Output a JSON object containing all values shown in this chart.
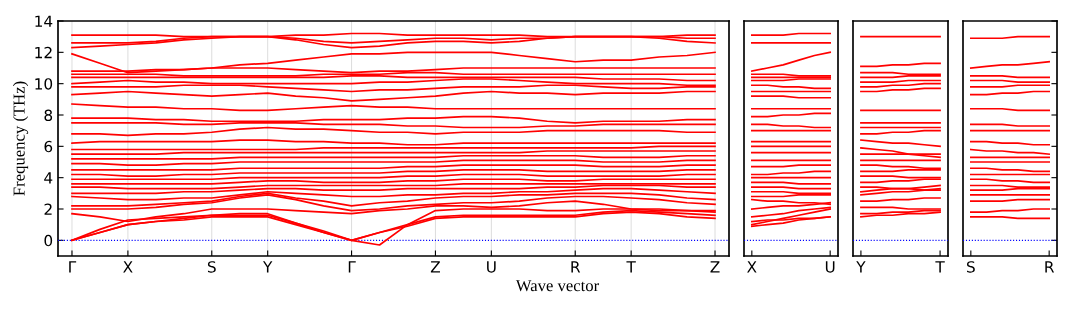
{
  "chart_data": [
    {
      "type": "line",
      "ylabel": "Frequency (THz)",
      "xlabel": "Wave vector",
      "grid": "x",
      "marker": "none",
      "line_style": "solid",
      "categories": [
        "Γ",
        null,
        "X",
        null,
        null,
        "S",
        null,
        "Y",
        null,
        null,
        "Γ",
        null,
        null,
        "Z",
        null,
        "U",
        null,
        null,
        "R",
        null,
        "T",
        null,
        null,
        "Z"
      ],
      "ylim": [
        -1,
        14
      ],
      "yticks": [
        0,
        2,
        4,
        6,
        8,
        10,
        12,
        14
      ],
      "ref_lines": [
        {
          "axis": "y",
          "value": 0,
          "color": "#0000ff",
          "line_style": "dotted"
        }
      ],
      "series": [
        {
          "color": "#ff0000",
          "values": [
            0,
            0.5,
            1.0,
            1.2,
            1.3,
            1.5,
            1.5,
            1.5,
            1.0,
            0.5,
            0,
            0.5,
            0.9,
            1.4,
            1.5,
            1.5,
            1.5,
            1.5,
            1.5,
            1.7,
            1.8,
            1.7,
            1.5,
            1.4
          ]
        },
        {
          "color": "#ff0000",
          "values": [
            0,
            0.5,
            1.0,
            1.2,
            1.4,
            1.6,
            1.6,
            1.6,
            1.1,
            0.5,
            0,
            0.5,
            1.0,
            1.5,
            1.6,
            1.6,
            1.6,
            1.6,
            1.6,
            1.8,
            1.9,
            1.8,
            1.7,
            1.6
          ]
        },
        {
          "color": "#ff0000",
          "values": [
            0,
            0.7,
            1.3,
            1.4,
            1.5,
            1.6,
            1.7,
            1.7,
            1.1,
            0.6,
            0,
            -0.3,
            1.0,
            1.9,
            2.0,
            2.0,
            2.0,
            1.9,
            1.9,
            2.0,
            2.0,
            2.0,
            1.9,
            1.9
          ]
        },
        {
          "color": "#ff0000",
          "values": [
            1.7,
            1.5,
            1.2,
            1.5,
            1.7,
            2.0,
            2.0,
            2.0,
            1.9,
            1.8,
            1.7,
            1.9,
            2.0,
            2.2,
            2.2,
            2.1,
            2.2,
            2.4,
            2.5,
            2.3,
            2.0,
            1.9,
            1.9,
            1.8
          ]
        },
        {
          "color": "#ff0000",
          "values": [
            2.0,
            2.0,
            2.0,
            2.1,
            2.3,
            2.4,
            2.7,
            2.9,
            2.6,
            2.2,
            1.9,
            2.0,
            2.2,
            2.3,
            2.4,
            2.4,
            2.5,
            2.7,
            2.8,
            2.8,
            2.7,
            2.6,
            2.4,
            2.3
          ]
        },
        {
          "color": "#ff0000",
          "values": [
            2.2,
            2.2,
            2.2,
            2.3,
            2.4,
            2.5,
            2.8,
            3.0,
            2.7,
            2.5,
            2.2,
            2.4,
            2.5,
            2.7,
            2.8,
            2.8,
            2.9,
            2.9,
            3.0,
            3.0,
            3.0,
            2.9,
            2.7,
            2.6
          ]
        },
        {
          "color": "#ff0000",
          "values": [
            2.8,
            2.7,
            2.6,
            2.6,
            2.7,
            2.7,
            2.9,
            3.1,
            3.0,
            2.9,
            2.8,
            2.8,
            2.9,
            2.9,
            3.0,
            3.0,
            3.1,
            3.1,
            3.2,
            3.3,
            3.3,
            3.2,
            3.1,
            3.0
          ]
        },
        {
          "color": "#ff0000",
          "values": [
            3.0,
            3.0,
            3.0,
            3.0,
            3.1,
            3.1,
            3.2,
            3.3,
            3.3,
            3.2,
            3.2,
            3.2,
            3.3,
            3.3,
            3.3,
            3.3,
            3.3,
            3.4,
            3.4,
            3.5,
            3.5,
            3.5,
            3.4,
            3.4
          ]
        },
        {
          "color": "#ff0000",
          "values": [
            3.4,
            3.4,
            3.3,
            3.3,
            3.3,
            3.3,
            3.4,
            3.5,
            3.5,
            3.5,
            3.5,
            3.5,
            3.5,
            3.5,
            3.6,
            3.6,
            3.6,
            3.6,
            3.6,
            3.6,
            3.6,
            3.6,
            3.6,
            3.6
          ]
        },
        {
          "color": "#ff0000",
          "values": [
            3.6,
            3.6,
            3.6,
            3.6,
            3.6,
            3.6,
            3.7,
            3.8,
            3.8,
            3.7,
            3.7,
            3.7,
            3.8,
            3.8,
            3.9,
            3.9,
            3.9,
            3.8,
            3.8,
            3.9,
            3.9,
            3.9,
            3.9,
            3.9
          ]
        },
        {
          "color": "#ff0000",
          "values": [
            3.9,
            3.9,
            3.9,
            3.9,
            3.9,
            3.9,
            4.0,
            4.0,
            4.0,
            4.0,
            4.0,
            4.0,
            4.1,
            4.1,
            4.2,
            4.2,
            4.2,
            4.1,
            4.1,
            4.1,
            4.1,
            4.1,
            4.2,
            4.2
          ]
        },
        {
          "color": "#ff0000",
          "values": [
            4.2,
            4.2,
            4.1,
            4.1,
            4.2,
            4.2,
            4.3,
            4.3,
            4.3,
            4.3,
            4.3,
            4.3,
            4.4,
            4.4,
            4.5,
            4.5,
            4.5,
            4.4,
            4.4,
            4.4,
            4.4,
            4.4,
            4.5,
            4.5
          ]
        },
        {
          "color": "#ff0000",
          "values": [
            4.5,
            4.5,
            4.5,
            4.5,
            4.5,
            4.5,
            4.6,
            4.6,
            4.6,
            4.6,
            4.6,
            4.6,
            4.7,
            4.7,
            4.8,
            4.8,
            4.8,
            4.8,
            4.8,
            4.7,
            4.7,
            4.7,
            4.8,
            4.8
          ]
        },
        {
          "color": "#ff0000",
          "values": [
            4.9,
            4.9,
            4.8,
            4.8,
            4.9,
            4.9,
            5.0,
            5.0,
            5.0,
            5.0,
            5.0,
            5.0,
            5.0,
            5.0,
            5.1,
            5.1,
            5.1,
            5.1,
            5.1,
            5.0,
            5.0,
            5.0,
            5.1,
            5.1
          ]
        },
        {
          "color": "#ff0000",
          "values": [
            5.2,
            5.2,
            5.2,
            5.2,
            5.2,
            5.2,
            5.3,
            5.3,
            5.3,
            5.3,
            5.3,
            5.3,
            5.3,
            5.3,
            5.4,
            5.4,
            5.4,
            5.4,
            5.4,
            5.3,
            5.3,
            5.3,
            5.4,
            5.4
          ]
        },
        {
          "color": "#ff0000",
          "values": [
            5.5,
            5.5,
            5.5,
            5.5,
            5.6,
            5.6,
            5.6,
            5.6,
            5.6,
            5.6,
            5.6,
            5.6,
            5.6,
            5.6,
            5.6,
            5.6,
            5.6,
            5.7,
            5.7,
            5.7,
            5.7,
            5.7,
            5.7,
            5.7
          ]
        },
        {
          "color": "#ff0000",
          "values": [
            5.8,
            5.8,
            5.8,
            5.8,
            5.8,
            5.8,
            5.8,
            5.8,
            5.8,
            5.9,
            5.9,
            5.9,
            5.9,
            5.9,
            5.9,
            5.9,
            5.9,
            5.9,
            5.9,
            5.9,
            5.9,
            6.0,
            6.0,
            6.0
          ]
        },
        {
          "color": "#ff0000",
          "values": [
            6.2,
            6.3,
            6.3,
            6.3,
            6.3,
            6.3,
            6.4,
            6.4,
            6.3,
            6.3,
            6.2,
            6.2,
            6.1,
            6.1,
            6.2,
            6.2,
            6.2,
            6.2,
            6.2,
            6.2,
            6.2,
            6.2,
            6.2,
            6.2
          ]
        },
        {
          "color": "#ff0000",
          "values": [
            6.8,
            6.8,
            6.7,
            6.8,
            6.8,
            6.9,
            7.1,
            7.2,
            7.1,
            7.1,
            7.0,
            6.9,
            6.9,
            6.8,
            6.9,
            6.9,
            6.9,
            7.0,
            7.0,
            7.0,
            7.0,
            7.0,
            6.9,
            6.9
          ]
        },
        {
          "color": "#ff0000",
          "values": [
            7.5,
            7.5,
            7.5,
            7.5,
            7.4,
            7.4,
            7.5,
            7.5,
            7.5,
            7.4,
            7.4,
            7.4,
            7.3,
            7.3,
            7.2,
            7.2,
            7.2,
            7.3,
            7.3,
            7.4,
            7.4,
            7.4,
            7.4,
            7.4
          ]
        },
        {
          "color": "#ff0000",
          "values": [
            7.8,
            7.8,
            7.8,
            7.7,
            7.7,
            7.6,
            7.6,
            7.6,
            7.6,
            7.7,
            7.7,
            7.7,
            7.8,
            7.8,
            7.9,
            7.9,
            7.8,
            7.6,
            7.5,
            7.6,
            7.6,
            7.6,
            7.7,
            7.7
          ]
        },
        {
          "color": "#ff0000",
          "values": [
            8.7,
            8.6,
            8.5,
            8.5,
            8.4,
            8.4,
            8.3,
            8.3,
            8.4,
            8.5,
            8.6,
            8.5,
            8.5,
            8.4,
            8.4,
            8.4,
            8.4,
            8.4,
            8.4,
            8.4,
            8.4,
            8.4,
            8.4,
            8.4
          ]
        },
        {
          "color": "#ff0000",
          "values": [
            9.3,
            9.4,
            9.5,
            9.4,
            9.3,
            9.2,
            9.3,
            9.4,
            9.2,
            9.1,
            8.9,
            9.0,
            9.1,
            9.2,
            9.4,
            9.5,
            9.4,
            9.4,
            9.3,
            9.4,
            9.4,
            9.4,
            9.5,
            9.5
          ]
        },
        {
          "color": "#ff0000",
          "values": [
            9.8,
            9.8,
            9.8,
            9.8,
            9.9,
            9.9,
            9.9,
            9.8,
            9.7,
            9.6,
            9.5,
            9.6,
            9.6,
            9.7,
            9.8,
            9.8,
            9.8,
            9.9,
            9.9,
            9.8,
            9.7,
            9.7,
            9.8,
            9.8
          ]
        },
        {
          "color": "#ff0000",
          "values": [
            10.0,
            10.1,
            10.2,
            10.1,
            10.1,
            10.0,
            10.0,
            10.0,
            10.0,
            10.0,
            10.0,
            10.1,
            10.1,
            10.2,
            10.3,
            10.3,
            10.2,
            10.1,
            10.0,
            10.0,
            10.0,
            10.0,
            9.9,
            9.9
          ]
        },
        {
          "color": "#ff0000",
          "values": [
            10.4,
            10.4,
            10.4,
            10.4,
            10.4,
            10.4,
            10.4,
            10.4,
            10.4,
            10.4,
            10.5,
            10.5,
            10.4,
            10.4,
            10.4,
            10.4,
            10.4,
            10.4,
            10.4,
            10.3,
            10.3,
            10.3,
            10.2,
            10.2
          ]
        },
        {
          "color": "#ff0000",
          "values": [
            10.6,
            10.6,
            10.6,
            10.6,
            10.5,
            10.5,
            10.5,
            10.5,
            10.5,
            10.6,
            10.6,
            10.6,
            10.7,
            10.7,
            10.6,
            10.6,
            10.6,
            10.6,
            10.6,
            10.6,
            10.6,
            10.6,
            10.6,
            10.6
          ]
        },
        {
          "color": "#ff0000",
          "values": [
            10.8,
            10.8,
            10.8,
            10.9,
            10.9,
            11.0,
            11.0,
            11.0,
            10.9,
            10.8,
            10.7,
            10.8,
            10.8,
            10.9,
            11.0,
            11.0,
            11.0,
            11.0,
            11.0,
            11.0,
            11.0,
            11.0,
            11.0,
            11.0
          ]
        },
        {
          "color": "#ff0000",
          "values": [
            11.9,
            11.3,
            10.7,
            10.8,
            10.9,
            11.0,
            11.2,
            11.3,
            11.5,
            11.7,
            11.9,
            11.9,
            12.0,
            12.0,
            12.0,
            12.0,
            11.8,
            11.6,
            11.4,
            11.5,
            11.5,
            11.7,
            11.8,
            12.0
          ]
        },
        {
          "color": "#ff0000",
          "values": [
            12.3,
            12.4,
            12.5,
            12.6,
            12.8,
            12.9,
            13.0,
            13.0,
            12.8,
            12.5,
            12.3,
            12.4,
            12.6,
            12.7,
            12.7,
            12.6,
            12.7,
            12.9,
            13.0,
            13.0,
            13.0,
            12.9,
            12.7,
            12.6
          ]
        },
        {
          "color": "#ff0000",
          "values": [
            12.6,
            12.6,
            12.6,
            12.7,
            12.9,
            13.0,
            13.0,
            13.0,
            12.9,
            12.7,
            12.6,
            12.7,
            12.8,
            12.9,
            12.9,
            12.8,
            12.9,
            12.9,
            13.0,
            13.0,
            13.0,
            13.0,
            12.9,
            12.9
          ]
        },
        {
          "color": "#ff0000",
          "values": [
            13.1,
            13.1,
            13.1,
            13.1,
            13.0,
            13.0,
            13.0,
            13.0,
            13.1,
            13.1,
            13.2,
            13.2,
            13.1,
            13.1,
            13.1,
            13.1,
            13.1,
            13.0,
            13.0,
            13.0,
            13.0,
            13.0,
            13.1,
            13.1
          ]
        }
      ]
    },
    {
      "type": "line",
      "tick_labels": "x",
      "marker": "none",
      "line_style": "solid",
      "categories": [
        "X",
        null,
        null,
        null,
        null,
        "U"
      ],
      "ylim": [
        -1,
        14
      ],
      "yticks": [
        0,
        2,
        4,
        6,
        8,
        10,
        12,
        14
      ],
      "ref_lines": [
        {
          "axis": "y",
          "value": 0,
          "color": "#0000ff",
          "line_style": "dotted"
        }
      ],
      "series": [
        {
          "color": "#ff0000",
          "values": [
            0.9,
            1.0,
            1.1,
            1.3,
            1.4,
            1.5
          ]
        },
        {
          "color": "#ff0000",
          "values": [
            1.0,
            1.2,
            1.4,
            1.6,
            1.8,
            2.0
          ]
        },
        {
          "color": "#ff0000",
          "values": [
            1.2,
            1.3,
            1.3,
            1.4,
            1.4,
            1.5
          ]
        },
        {
          "color": "#ff0000",
          "values": [
            1.5,
            1.6,
            1.7,
            1.9,
            2.0,
            2.1
          ]
        },
        {
          "color": "#ff0000",
          "values": [
            2.0,
            2.1,
            2.2,
            2.2,
            2.3,
            2.4
          ]
        },
        {
          "color": "#ff0000",
          "values": [
            2.6,
            2.5,
            2.5,
            2.4,
            2.4,
            2.3
          ]
        },
        {
          "color": "#ff0000",
          "values": [
            2.8,
            2.8,
            2.8,
            2.9,
            2.9,
            2.9
          ]
        },
        {
          "color": "#ff0000",
          "values": [
            3.1,
            3.1,
            3.1,
            3.0,
            3.0,
            3.0
          ]
        },
        {
          "color": "#ff0000",
          "values": [
            3.4,
            3.4,
            3.4,
            3.3,
            3.3,
            3.3
          ]
        },
        {
          "color": "#ff0000",
          "values": [
            3.7,
            3.7,
            3.7,
            3.6,
            3.6,
            3.6
          ]
        },
        {
          "color": "#ff0000",
          "values": [
            4.0,
            4.0,
            4.0,
            4.0,
            4.0,
            4.0
          ]
        },
        {
          "color": "#ff0000",
          "values": [
            4.2,
            4.2,
            4.3,
            4.3,
            4.4,
            4.4
          ]
        },
        {
          "color": "#ff0000",
          "values": [
            4.7,
            4.7,
            4.7,
            4.8,
            4.8,
            4.8
          ]
        },
        {
          "color": "#ff0000",
          "values": [
            5.1,
            5.1,
            5.1,
            5.1,
            5.1,
            5.1
          ]
        },
        {
          "color": "#ff0000",
          "values": [
            5.6,
            5.6,
            5.6,
            5.6,
            5.6,
            5.6
          ]
        },
        {
          "color": "#ff0000",
          "values": [
            6.0,
            6.0,
            6.0,
            6.0,
            6.0,
            6.0
          ]
        },
        {
          "color": "#ff0000",
          "values": [
            6.3,
            6.3,
            6.3,
            6.3,
            6.3,
            6.3
          ]
        },
        {
          "color": "#ff0000",
          "values": [
            7.0,
            7.0,
            7.0,
            7.0,
            7.0,
            7.0
          ]
        },
        {
          "color": "#ff0000",
          "values": [
            7.4,
            7.4,
            7.3,
            7.3,
            7.2,
            7.2
          ]
        },
        {
          "color": "#ff0000",
          "values": [
            7.9,
            7.9,
            8.0,
            8.0,
            8.1,
            8.1
          ]
        },
        {
          "color": "#ff0000",
          "values": [
            8.4,
            8.4,
            8.4,
            8.4,
            8.4,
            8.4
          ]
        },
        {
          "color": "#ff0000",
          "values": [
            9.2,
            9.2,
            9.2,
            9.1,
            9.1,
            9.1
          ]
        },
        {
          "color": "#ff0000",
          "values": [
            9.5,
            9.5,
            9.5,
            9.5,
            9.5,
            9.5
          ]
        },
        {
          "color": "#ff0000",
          "values": [
            9.9,
            9.9,
            9.8,
            9.8,
            9.7,
            9.7
          ]
        },
        {
          "color": "#ff0000",
          "values": [
            10.2,
            10.2,
            10.2,
            10.3,
            10.3,
            10.3
          ]
        },
        {
          "color": "#ff0000",
          "values": [
            10.4,
            10.4,
            10.4,
            10.4,
            10.4,
            10.4
          ]
        },
        {
          "color": "#ff0000",
          "values": [
            10.6,
            10.6,
            10.6,
            10.5,
            10.5,
            10.5
          ]
        },
        {
          "color": "#ff0000",
          "values": [
            10.8,
            11.0,
            11.2,
            11.5,
            11.8,
            12.0
          ]
        },
        {
          "color": "#ff0000",
          "values": [
            12.6,
            12.6,
            12.6,
            12.6,
            12.6,
            12.6
          ]
        },
        {
          "color": "#ff0000",
          "values": [
            13.1,
            13.1,
            13.1,
            13.2,
            13.2,
            13.2
          ]
        }
      ]
    },
    {
      "type": "line",
      "tick_labels": "x",
      "marker": "none",
      "line_style": "solid",
      "categories": [
        "Y",
        null,
        null,
        null,
        null,
        "T"
      ],
      "ylim": [
        -1,
        14
      ],
      "yticks": [
        0,
        2,
        4,
        6,
        8,
        10,
        12,
        14
      ],
      "ref_lines": [
        {
          "axis": "y",
          "value": 0,
          "color": "#0000ff",
          "line_style": "dotted"
        }
      ],
      "series": [
        {
          "color": "#ff0000",
          "values": [
            1.5,
            1.6,
            1.6,
            1.7,
            1.7,
            1.8
          ]
        },
        {
          "color": "#ff0000",
          "values": [
            1.7,
            1.7,
            1.8,
            1.8,
            1.9,
            1.9
          ]
        },
        {
          "color": "#ff0000",
          "values": [
            2.1,
            2.1,
            2.1,
            2.0,
            2.0,
            2.0
          ]
        },
        {
          "color": "#ff0000",
          "values": [
            2.5,
            2.5,
            2.6,
            2.6,
            2.7,
            2.7
          ]
        },
        {
          "color": "#ff0000",
          "values": [
            2.9,
            3.0,
            3.1,
            3.1,
            3.2,
            3.3
          ]
        },
        {
          "color": "#ff0000",
          "values": [
            3.1,
            3.2,
            3.3,
            3.3,
            3.4,
            3.5
          ]
        },
        {
          "color": "#ff0000",
          "values": [
            3.4,
            3.4,
            3.3,
            3.3,
            3.2,
            3.2
          ]
        },
        {
          "color": "#ff0000",
          "values": [
            3.7,
            3.7,
            3.8,
            3.8,
            3.9,
            3.9
          ]
        },
        {
          "color": "#ff0000",
          "values": [
            4.1,
            4.1,
            4.1,
            4.0,
            4.0,
            4.0
          ]
        },
        {
          "color": "#ff0000",
          "values": [
            4.4,
            4.4,
            4.4,
            4.5,
            4.5,
            4.5
          ]
        },
        {
          "color": "#ff0000",
          "values": [
            4.8,
            4.8,
            4.7,
            4.7,
            4.6,
            4.6
          ]
        },
        {
          "color": "#ff0000",
          "values": [
            5.1,
            5.1,
            5.1,
            5.1,
            5.1,
            5.1
          ]
        },
        {
          "color": "#ff0000",
          "values": [
            5.5,
            5.5,
            5.5,
            5.5,
            5.5,
            5.5
          ]
        },
        {
          "color": "#ff0000",
          "values": [
            5.9,
            5.8,
            5.7,
            5.5,
            5.4,
            5.3
          ]
        },
        {
          "color": "#ff0000",
          "values": [
            6.4,
            6.3,
            6.2,
            6.2,
            6.1,
            6.0
          ]
        },
        {
          "color": "#ff0000",
          "values": [
            6.8,
            6.8,
            6.9,
            6.9,
            7.0,
            7.0
          ]
        },
        {
          "color": "#ff0000",
          "values": [
            7.2,
            7.2,
            7.2,
            7.2,
            7.2,
            7.2
          ]
        },
        {
          "color": "#ff0000",
          "values": [
            7.5,
            7.5,
            7.5,
            7.5,
            7.5,
            7.5
          ]
        },
        {
          "color": "#ff0000",
          "values": [
            8.3,
            8.3,
            8.3,
            8.3,
            8.3,
            8.3
          ]
        },
        {
          "color": "#ff0000",
          "values": [
            9.5,
            9.5,
            9.6,
            9.6,
            9.7,
            9.7
          ]
        },
        {
          "color": "#ff0000",
          "values": [
            9.8,
            9.8,
            9.9,
            9.9,
            10.0,
            10.0
          ]
        },
        {
          "color": "#ff0000",
          "values": [
            10.1,
            10.1,
            10.1,
            10.2,
            10.2,
            10.2
          ]
        },
        {
          "color": "#ff0000",
          "values": [
            10.4,
            10.4,
            10.4,
            10.5,
            10.5,
            10.5
          ]
        },
        {
          "color": "#ff0000",
          "values": [
            10.7,
            10.7,
            10.7,
            10.6,
            10.6,
            10.6
          ]
        },
        {
          "color": "#ff0000",
          "values": [
            11.1,
            11.1,
            11.2,
            11.2,
            11.3,
            11.3
          ]
        },
        {
          "color": "#ff0000",
          "values": [
            13.0,
            13.0,
            13.0,
            13.0,
            13.0,
            13.0
          ]
        }
      ]
    },
    {
      "type": "line",
      "tick_labels": "x",
      "marker": "none",
      "line_style": "solid",
      "categories": [
        "S",
        null,
        null,
        null,
        null,
        "R"
      ],
      "ylim": [
        -1,
        14
      ],
      "yticks": [
        0,
        2,
        4,
        6,
        8,
        10,
        12,
        14
      ],
      "ref_lines": [
        {
          "axis": "y",
          "value": 0,
          "color": "#0000ff",
          "line_style": "dotted"
        }
      ],
      "series": [
        {
          "color": "#ff0000",
          "values": [
            1.5,
            1.5,
            1.5,
            1.4,
            1.4,
            1.4
          ]
        },
        {
          "color": "#ff0000",
          "values": [
            1.8,
            1.8,
            1.9,
            1.9,
            2.0,
            2.0
          ]
        },
        {
          "color": "#ff0000",
          "values": [
            2.5,
            2.5,
            2.5,
            2.6,
            2.6,
            2.6
          ]
        },
        {
          "color": "#ff0000",
          "values": [
            2.9,
            2.9,
            2.9,
            2.9,
            2.9,
            2.9
          ]
        },
        {
          "color": "#ff0000",
          "values": [
            3.2,
            3.2,
            3.2,
            3.3,
            3.3,
            3.3
          ]
        },
        {
          "color": "#ff0000",
          "values": [
            3.5,
            3.5,
            3.5,
            3.4,
            3.4,
            3.4
          ]
        },
        {
          "color": "#ff0000",
          "values": [
            3.9,
            3.9,
            3.8,
            3.8,
            3.7,
            3.7
          ]
        },
        {
          "color": "#ff0000",
          "values": [
            4.2,
            4.2,
            4.2,
            4.2,
            4.2,
            4.2
          ]
        },
        {
          "color": "#ff0000",
          "values": [
            4.6,
            4.6,
            4.5,
            4.5,
            4.4,
            4.4
          ]
        },
        {
          "color": "#ff0000",
          "values": [
            5.0,
            5.0,
            5.0,
            5.0,
            5.0,
            5.0
          ]
        },
        {
          "color": "#ff0000",
          "values": [
            5.3,
            5.3,
            5.3,
            5.3,
            5.3,
            5.3
          ]
        },
        {
          "color": "#ff0000",
          "values": [
            5.8,
            5.7,
            5.7,
            5.6,
            5.6,
            5.5
          ]
        },
        {
          "color": "#ff0000",
          "values": [
            6.3,
            6.3,
            6.2,
            6.2,
            6.1,
            6.1
          ]
        },
        {
          "color": "#ff0000",
          "values": [
            7.0,
            7.0,
            7.0,
            7.0,
            7.0,
            7.0
          ]
        },
        {
          "color": "#ff0000",
          "values": [
            7.4,
            7.4,
            7.4,
            7.3,
            7.3,
            7.3
          ]
        },
        {
          "color": "#ff0000",
          "values": [
            8.4,
            8.4,
            8.4,
            8.3,
            8.3,
            8.3
          ]
        },
        {
          "color": "#ff0000",
          "values": [
            9.3,
            9.3,
            9.4,
            9.4,
            9.5,
            9.5
          ]
        },
        {
          "color": "#ff0000",
          "values": [
            9.8,
            9.8,
            9.8,
            9.9,
            9.9,
            9.9
          ]
        },
        {
          "color": "#ff0000",
          "values": [
            10.2,
            10.2,
            10.2,
            10.1,
            10.1,
            10.1
          ]
        },
        {
          "color": "#ff0000",
          "values": [
            10.5,
            10.5,
            10.5,
            10.4,
            10.4,
            10.4
          ]
        },
        {
          "color": "#ff0000",
          "values": [
            11.0,
            11.1,
            11.2,
            11.2,
            11.3,
            11.4
          ]
        },
        {
          "color": "#ff0000",
          "values": [
            12.9,
            12.9,
            12.9,
            13.0,
            13.0,
            13.0
          ]
        }
      ]
    }
  ]
}
